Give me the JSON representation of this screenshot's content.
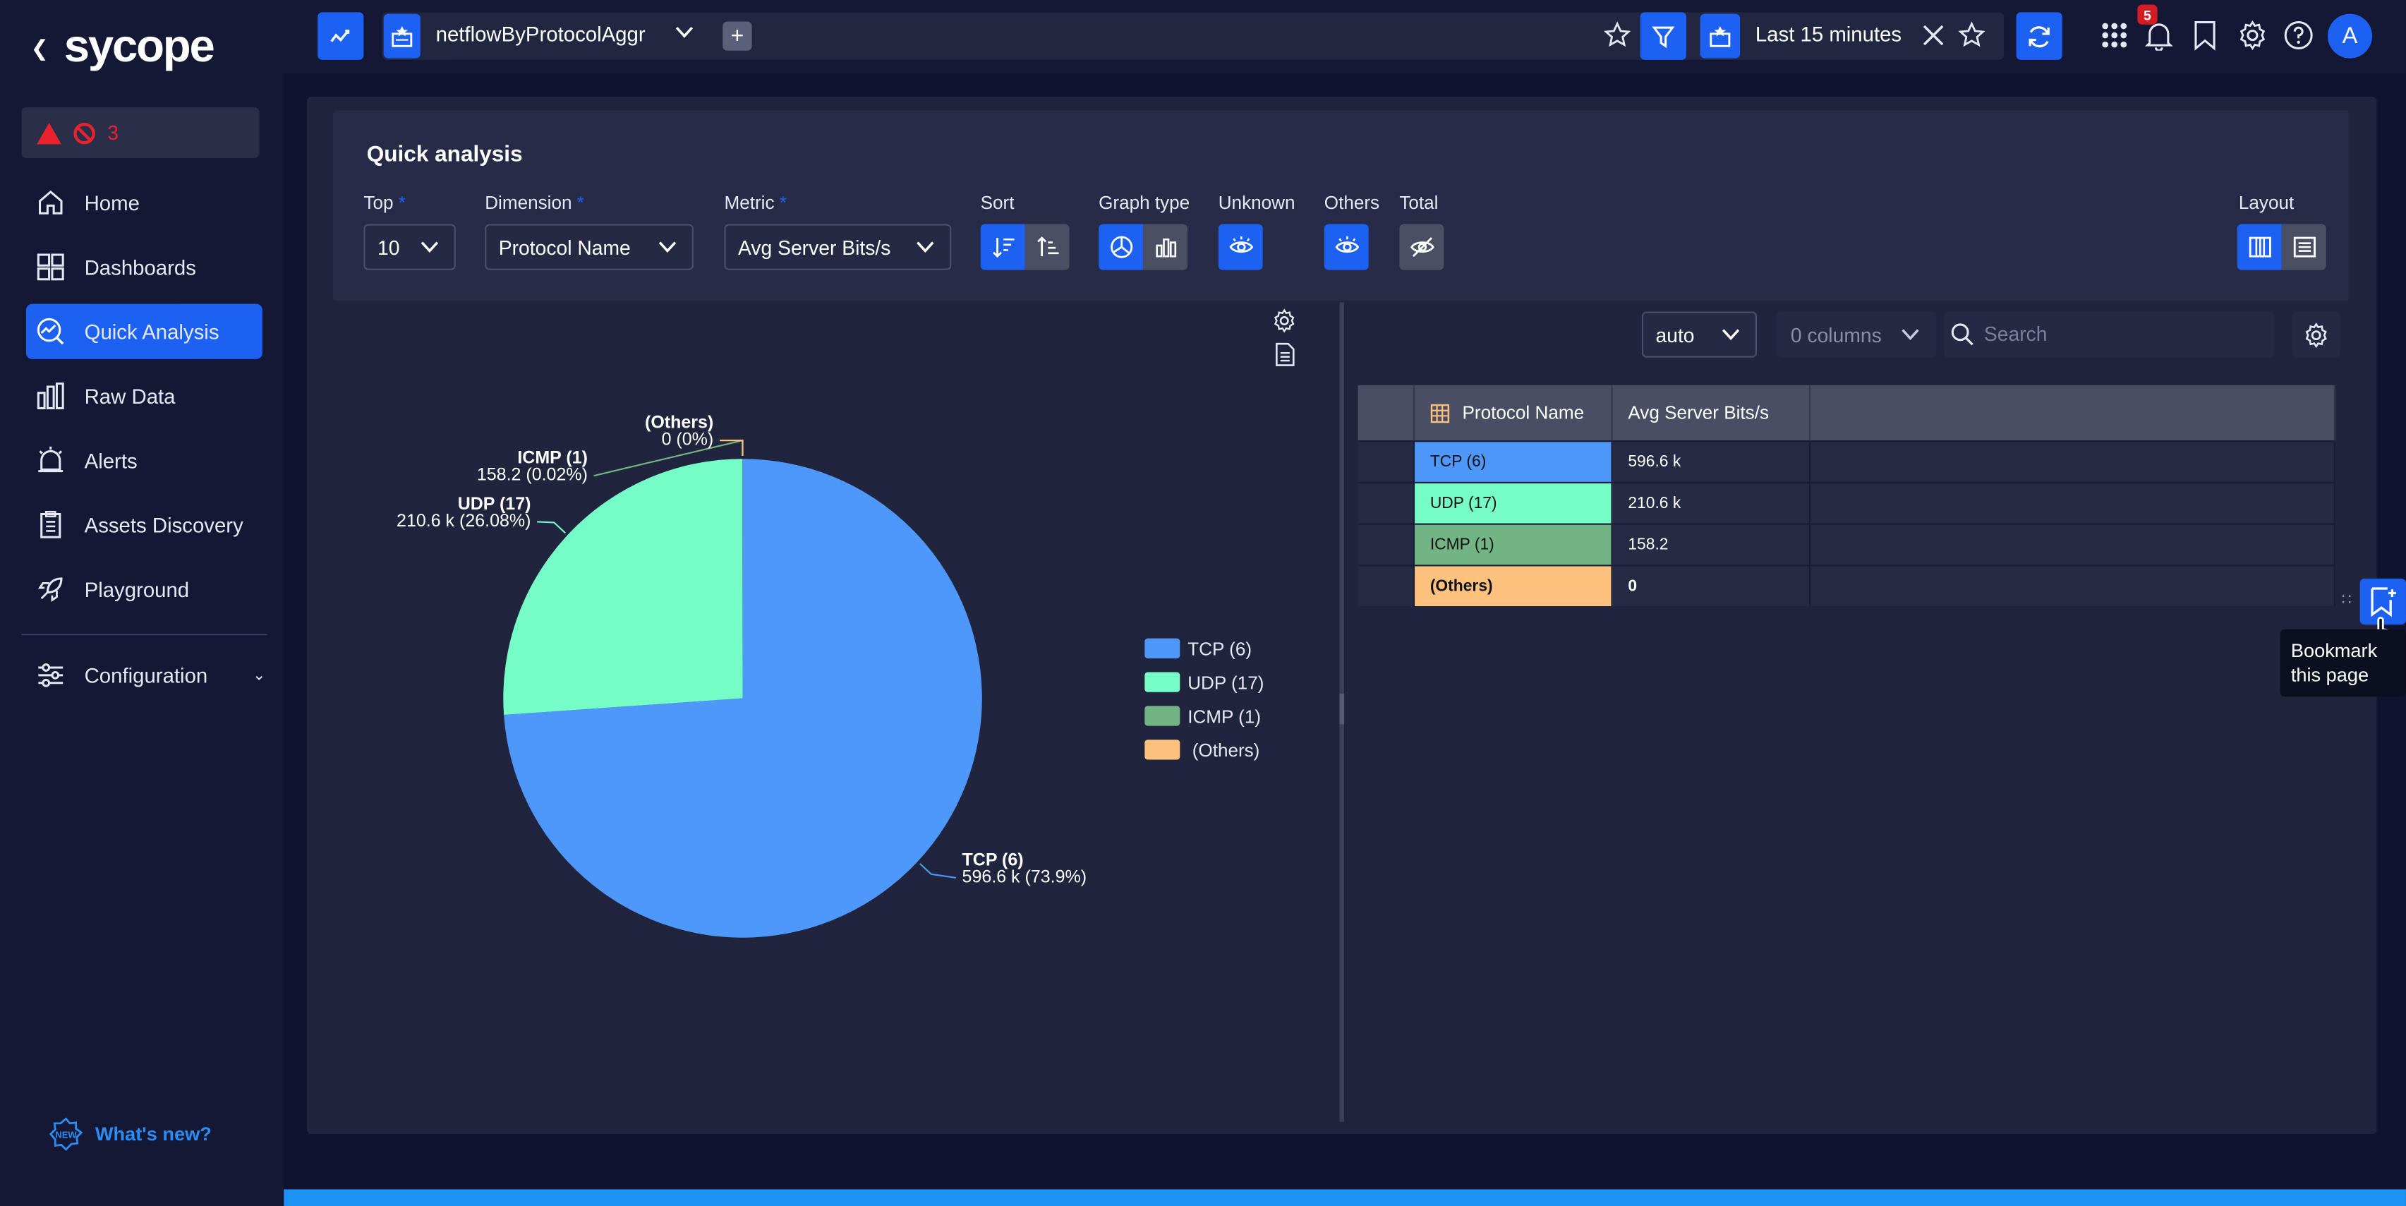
{
  "app": {
    "logo": "sycope",
    "alerts": {
      "count": "3"
    },
    "colors": {
      "accent": "#1c61f2",
      "background": "#0f1330",
      "sidebar": "#141834",
      "panel": "#20243d",
      "alert": "#e8232e",
      "bottom_bar": "#1a93f5"
    }
  },
  "sidebar": {
    "items": [
      {
        "label": "Home",
        "icon": "home-icon"
      },
      {
        "label": "Dashboards",
        "icon": "dashboards-icon"
      },
      {
        "label": "Quick Analysis",
        "icon": "quick-analysis-icon",
        "active": true
      },
      {
        "label": "Raw Data",
        "icon": "raw-data-icon"
      },
      {
        "label": "Alerts",
        "icon": "alarm-icon"
      },
      {
        "label": "Assets Discovery",
        "icon": "clipboard-icon"
      },
      {
        "label": "Playground",
        "icon": "rocket-icon"
      }
    ],
    "configuration": "Configuration",
    "whats_new": "What's new?"
  },
  "topbar": {
    "query_name": "netflowByProtocolAggr",
    "time_range": "Last 15 minutes",
    "notifications_count": "5",
    "avatar_initial": "A"
  },
  "quick_analysis": {
    "title": "Quick analysis",
    "top": {
      "label": "Top",
      "value": "10"
    },
    "dimension": {
      "label": "Dimension",
      "value": "Protocol Name"
    },
    "metric": {
      "label": "Metric",
      "value": "Avg Server Bits/s"
    },
    "sort_label": "Sort",
    "graph_type_label": "Graph type",
    "unknown_label": "Unknown",
    "others_label": "Others",
    "total_label": "Total",
    "layout_label": "Layout"
  },
  "chart_data": {
    "type": "pie",
    "categories": [
      "TCP (6)",
      "UDP (17)",
      "ICMP (1)",
      "(Others)"
    ],
    "values": [
      596600,
      210600,
      158.2,
      0
    ],
    "value_labels": [
      "596.6 k (73.9%)",
      "210.6 k (26.08%)",
      "158.2  (0.02%)",
      "0  (0%)"
    ],
    "percents": [
      73.9,
      26.08,
      0.02,
      0
    ],
    "colors": [
      "#4e97fb",
      "#76fcc6",
      "#73b485",
      "#fec27e"
    ],
    "legend": [
      "TCP (6)",
      "UDP (17)",
      "ICMP (1)",
      "(Others)"
    ],
    "legend_position": "right"
  },
  "table": {
    "auto_select": "auto",
    "columns_select": "0 columns",
    "search_placeholder": "Search",
    "headers": [
      "Protocol Name",
      "Avg Server Bits/s"
    ],
    "rows": [
      {
        "name": "TCP (6)",
        "value": "596.6 k",
        "color": "#4e97fb"
      },
      {
        "name": "UDP (17)",
        "value": "210.6 k",
        "color": "#76fcc6"
      },
      {
        "name": "ICMP (1)",
        "value": "158.2",
        "color": "#73b485"
      },
      {
        "name": "(Others)",
        "value": "0",
        "color": "#fec27e"
      }
    ]
  },
  "tooltip": {
    "line1": "Bookmark",
    "line2": "this page"
  }
}
